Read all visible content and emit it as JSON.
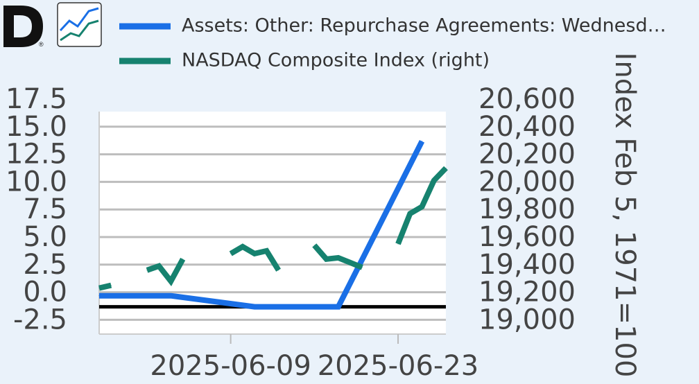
{
  "logo": {
    "letter": "D",
    "reg": "®"
  },
  "colors": {
    "series1": "#1a6fe6",
    "series2": "#16826f",
    "plot_bg": "#ffffff",
    "page_bg": "#eaf2fa",
    "grid": "#bdbdbd",
    "zero_line": "#000000"
  },
  "icons": {
    "logo": "dshort-logo-icon",
    "chart_toggle": "line-chart-icon"
  },
  "legend": [
    {
      "label": "Assets: Other: Repurchase Agreements: Wednesd…"
    },
    {
      "label": "NASDAQ Composite Index (right)"
    }
  ],
  "chart_data": {
    "type": "line",
    "y_axis_left": {
      "min": -2.5,
      "max": 17.5,
      "ticks": [
        "17.5",
        "15.0",
        "12.5",
        "10.0",
        "7.5",
        "5.0",
        "2.5",
        "0.0",
        "-2.5"
      ]
    },
    "y_axis_right": {
      "label": "Index Feb 5, 1971=100",
      "min": 19000,
      "max": 20600,
      "ticks": [
        "20,600",
        "20,400",
        "20,200",
        "20,000",
        "19,800",
        "19,600",
        "19,400",
        "19,200",
        "19,000"
      ]
    },
    "x_axis": {
      "min": "2025-05-29",
      "max": "2025-06-27",
      "ticks": [
        {
          "date": "2025-06-09",
          "label": "2025-06-09"
        },
        {
          "date": "2025-06-23",
          "label": "2025-06-23"
        }
      ]
    },
    "grid": true,
    "series": [
      {
        "axis": "left",
        "points": [
          [
            "2025-05-29",
            1.0
          ],
          [
            "2025-06-01",
            1.0
          ],
          [
            "2025-06-04",
            1.0
          ],
          [
            "2025-06-11",
            0.0
          ],
          [
            "2025-06-18",
            0.0
          ],
          [
            "2025-06-25",
            15.0
          ]
        ]
      },
      {
        "axis": "right",
        "points": [
          [
            "2025-05-29",
            19230
          ],
          [
            "2025-05-30",
            19250
          ],
          [
            "2025-06-02",
            19360
          ],
          [
            "2025-06-03",
            19390
          ],
          [
            "2025-06-04",
            19280
          ],
          [
            "2025-06-05",
            19440
          ],
          [
            "2025-06-09",
            19480
          ],
          [
            "2025-06-10",
            19530
          ],
          [
            "2025-06-11",
            19480
          ],
          [
            "2025-06-12",
            19500
          ],
          [
            "2025-06-13",
            19360
          ],
          [
            "2025-06-16",
            19540
          ],
          [
            "2025-06-17",
            19440
          ],
          [
            "2025-06-18",
            19450
          ],
          [
            "2025-06-20",
            19380
          ],
          [
            "2025-06-23",
            19550
          ],
          [
            "2025-06-24",
            19770
          ],
          [
            "2025-06-25",
            19820
          ],
          [
            "2025-06-26",
            20010
          ],
          [
            "2025-06-27",
            20100
          ]
        ]
      }
    ]
  }
}
